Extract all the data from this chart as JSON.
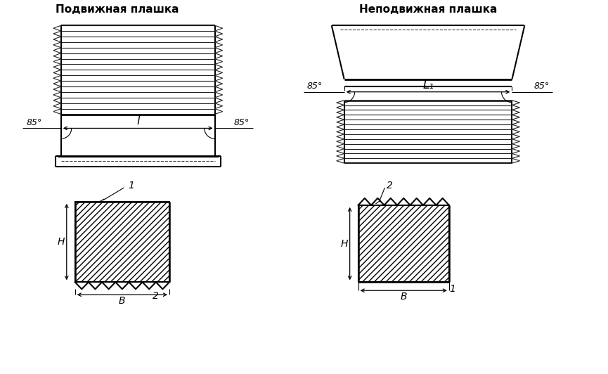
{
  "title_left": "Подвижная плашка",
  "title_right": "Неподвижная плашка",
  "bg_color": "#ffffff",
  "line_color": "#000000",
  "angle_label": "85°",
  "dim_label_left": "l",
  "dim_label_right": "L₁",
  "label_H": "H",
  "label_B": "B",
  "label_1": "1",
  "label_2": "2"
}
